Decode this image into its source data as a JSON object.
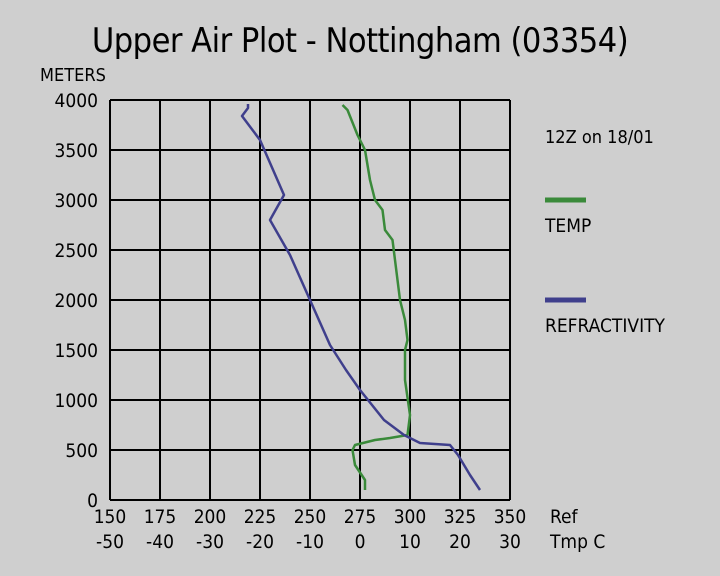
{
  "chart_data": {
    "type": "line",
    "title": "Upper Air Plot - Nottingham (03354)",
    "ylabel": "METERS",
    "ylim": [
      0,
      4000
    ],
    "y_ticks": [
      "0",
      "500",
      "1000",
      "1500",
      "2000",
      "2500",
      "3000",
      "3500",
      "4000"
    ],
    "x_axes": [
      {
        "label": "Ref",
        "range": [
          150,
          350
        ],
        "ticks": [
          "150",
          "175",
          "200",
          "225",
          "250",
          "275",
          "300",
          "325",
          "350"
        ]
      },
      {
        "label": "Tmp C",
        "range": [
          -50,
          30
        ],
        "ticks": [
          "-50",
          "-40",
          "-30",
          "-20",
          "-10",
          "0",
          "10",
          "20",
          "30"
        ]
      }
    ],
    "annotation": "12Z on 18/01",
    "grid": true,
    "legend_position": "right",
    "series": [
      {
        "name": "TEMP",
        "axis": "Tmp C",
        "color": "#3a8a3a",
        "points": [
          {
            "x": 1.0,
            "y": 100
          },
          {
            "x": 1.0,
            "y": 200
          },
          {
            "x": -1.0,
            "y": 350
          },
          {
            "x": -1.5,
            "y": 500
          },
          {
            "x": -1.0,
            "y": 550
          },
          {
            "x": 3.0,
            "y": 600
          },
          {
            "x": 6.0,
            "y": 620
          },
          {
            "x": 9.5,
            "y": 650
          },
          {
            "x": 10.0,
            "y": 850
          },
          {
            "x": 9.0,
            "y": 1200
          },
          {
            "x": 9.0,
            "y": 1500
          },
          {
            "x": 9.5,
            "y": 1600
          },
          {
            "x": 9.0,
            "y": 1800
          },
          {
            "x": 8.0,
            "y": 2000
          },
          {
            "x": 7.0,
            "y": 2400
          },
          {
            "x": 6.5,
            "y": 2600
          },
          {
            "x": 5.0,
            "y": 2700
          },
          {
            "x": 4.5,
            "y": 2900
          },
          {
            "x": 3.0,
            "y": 3000
          },
          {
            "x": 2.0,
            "y": 3200
          },
          {
            "x": 1.0,
            "y": 3500
          },
          {
            "x": -0.5,
            "y": 3650
          },
          {
            "x": -2.5,
            "y": 3900
          },
          {
            "x": -3.5,
            "y": 3950
          }
        ]
      },
      {
        "name": "REFRACTIVITY",
        "axis": "Ref",
        "color": "#3f3f8c",
        "points": [
          {
            "x": 335,
            "y": 100
          },
          {
            "x": 330,
            "y": 250
          },
          {
            "x": 324,
            "y": 450
          },
          {
            "x": 320,
            "y": 550
          },
          {
            "x": 305,
            "y": 570
          },
          {
            "x": 297,
            "y": 650
          },
          {
            "x": 287,
            "y": 800
          },
          {
            "x": 275,
            "y": 1100
          },
          {
            "x": 268,
            "y": 1300
          },
          {
            "x": 260,
            "y": 1550
          },
          {
            "x": 250,
            "y": 2000
          },
          {
            "x": 240,
            "y": 2450
          },
          {
            "x": 230,
            "y": 2800
          },
          {
            "x": 237,
            "y": 3050
          },
          {
            "x": 225,
            "y": 3600
          },
          {
            "x": 216,
            "y": 3840
          },
          {
            "x": 219,
            "y": 3920
          },
          {
            "x": 219,
            "y": 3960
          }
        ]
      }
    ]
  }
}
